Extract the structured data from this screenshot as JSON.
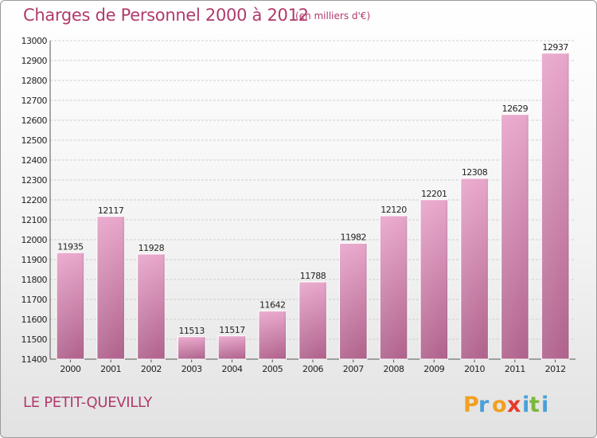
{
  "header": {
    "title": "Charges de Personnel 2000 à 2012",
    "subtitle": "(en milliers d'€)"
  },
  "footer": {
    "town": "LE PETIT-QUEVILLY",
    "logo_text": "Proxiti"
  },
  "colors": {
    "title": "#b03a6c",
    "bar_light": "#e8a6cb",
    "bar_dark": "#b0628c"
  },
  "chart_data": {
    "type": "bar",
    "title": "Charges de Personnel 2000 à 2012",
    "subtitle": "(en milliers d'€)",
    "categories": [
      "2000",
      "2001",
      "2002",
      "2003",
      "2004",
      "2005",
      "2006",
      "2007",
      "2008",
      "2009",
      "2010",
      "2011",
      "2012"
    ],
    "values": [
      11935,
      12117,
      11928,
      11513,
      11517,
      11642,
      11788,
      11982,
      12120,
      12201,
      12308,
      12629,
      12937
    ],
    "ylim": [
      11400,
      13000
    ],
    "yticks": [
      11400,
      11500,
      11600,
      11700,
      11800,
      11900,
      12000,
      12100,
      12200,
      12300,
      12400,
      12500,
      12600,
      12700,
      12800,
      12900,
      13000
    ],
    "grid": true,
    "legend": "none",
    "data_labels": true
  }
}
